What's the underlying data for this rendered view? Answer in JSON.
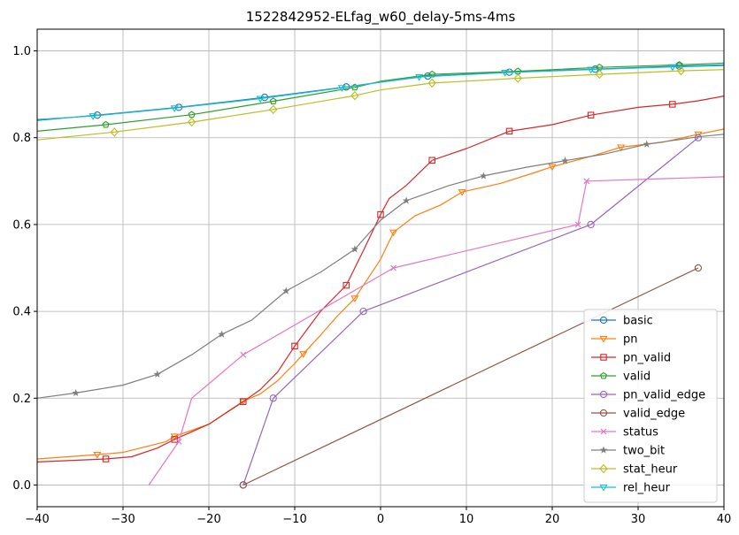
{
  "chart_data": {
    "type": "line",
    "title": "1522842952-ELfag_w60_delay-5ms-4ms",
    "xlabel": "",
    "ylabel": "",
    "xlim": [
      -40,
      40
    ],
    "ylim": [
      -0.05,
      1.05
    ],
    "xticks": [
      -40,
      -30,
      -20,
      -10,
      0,
      10,
      20,
      30,
      40
    ],
    "yticks": [
      0.0,
      0.2,
      0.4,
      0.6,
      0.8,
      1.0
    ],
    "xtick_labels": [
      "−40",
      "−30",
      "−20",
      "−10",
      "0",
      "10",
      "20",
      "30",
      "40"
    ],
    "ytick_labels": [
      "0.0",
      "0.2",
      "0.4",
      "0.6",
      "0.8",
      "1.0"
    ],
    "grid": true,
    "legend_position": "lower-right",
    "series": [
      {
        "name": "basic",
        "color": "#1f77b4",
        "marker": "circle",
        "points": [
          [
            -40,
            0.84
          ],
          [
            -33,
            0.852
          ],
          [
            -23.5,
            0.87
          ],
          [
            -13.5,
            0.893
          ],
          [
            -4,
            0.917
          ],
          [
            0,
            0.928
          ],
          [
            5.5,
            0.942
          ],
          [
            15,
            0.951
          ],
          [
            25,
            0.958
          ],
          [
            34.8,
            0.965
          ],
          [
            40,
            0.968
          ]
        ],
        "markers": [
          [
            -33,
            0.852
          ],
          [
            -23.5,
            0.87
          ],
          [
            -13.5,
            0.893
          ],
          [
            -4,
            0.917
          ],
          [
            5.5,
            0.942
          ],
          [
            15,
            0.951
          ],
          [
            25,
            0.958
          ],
          [
            34.8,
            0.965
          ]
        ]
      },
      {
        "name": "valid",
        "color": "#2ca02c",
        "marker": "pentagon",
        "points": [
          [
            -40,
            0.815
          ],
          [
            -32,
            0.83
          ],
          [
            -22,
            0.853
          ],
          [
            -12.5,
            0.884
          ],
          [
            -3,
            0.916
          ],
          [
            0,
            0.93
          ],
          [
            6,
            0.946
          ],
          [
            16,
            0.953
          ],
          [
            25.5,
            0.962
          ],
          [
            34.8,
            0.968
          ],
          [
            40,
            0.972
          ]
        ],
        "markers": [
          [
            -32,
            0.83
          ],
          [
            -22,
            0.853
          ],
          [
            -12.5,
            0.884
          ],
          [
            -3,
            0.916
          ],
          [
            6,
            0.946
          ],
          [
            16,
            0.953
          ],
          [
            25.5,
            0.962
          ],
          [
            34.8,
            0.968
          ]
        ]
      },
      {
        "name": "rel_heur",
        "color": "#17becf",
        "marker": "tri_down",
        "points": [
          [
            -40,
            0.842
          ],
          [
            -33.5,
            0.85
          ],
          [
            -24,
            0.868
          ],
          [
            -14,
            0.89
          ],
          [
            -4.5,
            0.915
          ],
          [
            0,
            0.928
          ],
          [
            4.5,
            0.94
          ],
          [
            14.5,
            0.95
          ],
          [
            24.5,
            0.957
          ],
          [
            34,
            0.963
          ],
          [
            40,
            0.966
          ]
        ],
        "markers": [
          [
            -33.5,
            0.85
          ],
          [
            -24,
            0.868
          ],
          [
            -14,
            0.89
          ],
          [
            -4.5,
            0.915
          ],
          [
            4.5,
            0.94
          ],
          [
            14.5,
            0.95
          ],
          [
            24.5,
            0.957
          ],
          [
            34,
            0.963
          ]
        ]
      },
      {
        "name": "stat_heur",
        "color": "#bcbd22",
        "marker": "diamond",
        "points": [
          [
            -40,
            0.795
          ],
          [
            -31,
            0.813
          ],
          [
            -22,
            0.836
          ],
          [
            -12.5,
            0.865
          ],
          [
            -3,
            0.897
          ],
          [
            0,
            0.91
          ],
          [
            6,
            0.926
          ],
          [
            16,
            0.937
          ],
          [
            25.5,
            0.946
          ],
          [
            35,
            0.954
          ],
          [
            40,
            0.957
          ]
        ],
        "markers": [
          [
            -31,
            0.813
          ],
          [
            -22,
            0.836
          ],
          [
            -12.5,
            0.865
          ],
          [
            -3,
            0.897
          ],
          [
            6,
            0.926
          ],
          [
            16,
            0.937
          ],
          [
            25.5,
            0.946
          ],
          [
            35,
            0.954
          ]
        ]
      },
      {
        "name": "pn",
        "color": "#ff7f0e",
        "marker": "tri_down",
        "points": [
          [
            -40,
            0.06
          ],
          [
            -33,
            0.07
          ],
          [
            -30,
            0.075
          ],
          [
            -25,
            0.1
          ],
          [
            -24,
            0.112
          ],
          [
            -20,
            0.14
          ],
          [
            -16,
            0.193
          ],
          [
            -14,
            0.21
          ],
          [
            -12,
            0.24
          ],
          [
            -10,
            0.28
          ],
          [
            -9,
            0.302
          ],
          [
            -7,
            0.345
          ],
          [
            -5,
            0.39
          ],
          [
            -3,
            0.43
          ],
          [
            -1,
            0.49
          ],
          [
            0,
            0.52
          ],
          [
            1.5,
            0.582
          ],
          [
            4,
            0.62
          ],
          [
            7,
            0.645
          ],
          [
            9.5,
            0.675
          ],
          [
            14,
            0.695
          ],
          [
            18,
            0.72
          ],
          [
            20,
            0.733
          ],
          [
            25,
            0.76
          ],
          [
            28,
            0.778
          ],
          [
            33,
            0.79
          ],
          [
            37,
            0.808
          ],
          [
            40,
            0.82
          ]
        ],
        "markers": [
          [
            -33,
            0.07
          ],
          [
            -24,
            0.112
          ],
          [
            -16,
            0.193
          ],
          [
            -9,
            0.302
          ],
          [
            -3,
            0.43
          ],
          [
            1.5,
            0.582
          ],
          [
            9.5,
            0.675
          ],
          [
            20,
            0.733
          ],
          [
            28,
            0.778
          ],
          [
            37,
            0.808
          ]
        ]
      },
      {
        "name": "pn_valid",
        "color": "#d62728",
        "marker": "square",
        "points": [
          [
            -40,
            0.053
          ],
          [
            -32,
            0.06
          ],
          [
            -29,
            0.065
          ],
          [
            -26,
            0.085
          ],
          [
            -24,
            0.105
          ],
          [
            -20,
            0.14
          ],
          [
            -16,
            0.192
          ],
          [
            -14,
            0.22
          ],
          [
            -12,
            0.26
          ],
          [
            -10,
            0.32
          ],
          [
            -7,
            0.4
          ],
          [
            -4,
            0.46
          ],
          [
            -2,
            0.54
          ],
          [
            0,
            0.623
          ],
          [
            1,
            0.66
          ],
          [
            3,
            0.69
          ],
          [
            6,
            0.748
          ],
          [
            10,
            0.775
          ],
          [
            15,
            0.815
          ],
          [
            20,
            0.83
          ],
          [
            24.5,
            0.852
          ],
          [
            30,
            0.87
          ],
          [
            34,
            0.877
          ],
          [
            37,
            0.885
          ],
          [
            40,
            0.896
          ]
        ],
        "markers": [
          [
            -32,
            0.06
          ],
          [
            -24,
            0.105
          ],
          [
            -16,
            0.192
          ],
          [
            -10,
            0.32
          ],
          [
            -4,
            0.46
          ],
          [
            0,
            0.623
          ],
          [
            6,
            0.748
          ],
          [
            15,
            0.815
          ],
          [
            24.5,
            0.852
          ],
          [
            34,
            0.877
          ]
        ]
      },
      {
        "name": "pn_valid_edge",
        "color": "#9467bd",
        "marker": "circle",
        "points": [
          [
            -16,
            0.0
          ],
          [
            -12.5,
            0.2
          ],
          [
            -2,
            0.4
          ],
          [
            24.5,
            0.6
          ],
          [
            37,
            0.8
          ]
        ],
        "markers": [
          [
            -16,
            0.0
          ],
          [
            -12.5,
            0.2
          ],
          [
            -2,
            0.4
          ],
          [
            24.5,
            0.6
          ],
          [
            37,
            0.8
          ]
        ]
      },
      {
        "name": "valid_edge",
        "color": "#8c564b",
        "marker": "circle",
        "points": [
          [
            -16,
            0.0
          ],
          [
            37,
            0.5
          ]
        ],
        "markers": [
          [
            -16,
            0.0
          ],
          [
            37,
            0.5
          ]
        ]
      },
      {
        "name": "status",
        "color": "#e377c2",
        "marker": "x",
        "points": [
          [
            -27,
            0.0
          ],
          [
            -23.5,
            0.1
          ],
          [
            -22,
            0.2
          ],
          [
            -16,
            0.3
          ],
          [
            1.5,
            0.5
          ],
          [
            23,
            0.6
          ],
          [
            24,
            0.7
          ],
          [
            40,
            0.71
          ]
        ],
        "markers": [
          [
            -23.5,
            0.1
          ],
          [
            -16,
            0.3
          ],
          [
            1.5,
            0.5
          ],
          [
            23,
            0.6
          ],
          [
            24,
            0.7
          ]
        ]
      },
      {
        "name": "two_bit",
        "color": "#7f7f7f",
        "marker": "star",
        "points": [
          [
            -40,
            0.2
          ],
          [
            -35.5,
            0.212
          ],
          [
            -30,
            0.23
          ],
          [
            -26,
            0.255
          ],
          [
            -22,
            0.3
          ],
          [
            -18.5,
            0.347
          ],
          [
            -15,
            0.38
          ],
          [
            -11,
            0.447
          ],
          [
            -7,
            0.49
          ],
          [
            -3,
            0.543
          ],
          [
            0,
            0.61
          ],
          [
            3,
            0.655
          ],
          [
            8,
            0.69
          ],
          [
            12,
            0.712
          ],
          [
            17,
            0.732
          ],
          [
            21.5,
            0.747
          ],
          [
            26,
            0.762
          ],
          [
            31,
            0.785
          ],
          [
            37,
            0.802
          ],
          [
            40,
            0.808
          ]
        ],
        "markers": [
          [
            -35.5,
            0.212
          ],
          [
            -26,
            0.255
          ],
          [
            -18.5,
            0.347
          ],
          [
            -11,
            0.447
          ],
          [
            -3,
            0.543
          ],
          [
            3,
            0.655
          ],
          [
            12,
            0.712
          ],
          [
            21.5,
            0.747
          ],
          [
            31,
            0.785
          ]
        ]
      }
    ]
  }
}
